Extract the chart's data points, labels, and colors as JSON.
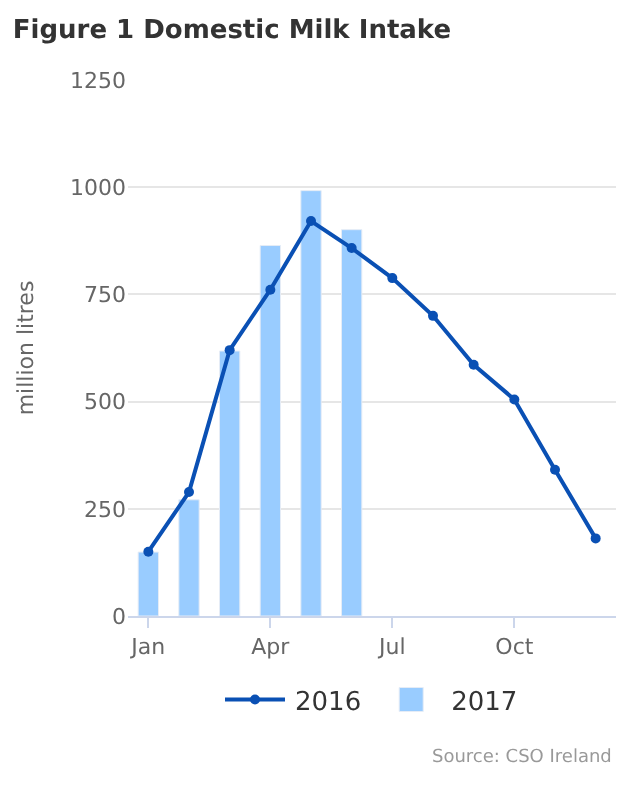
{
  "chart_data": {
    "type": "bar",
    "title": "Figure 1 Domestic Milk Intake",
    "ylabel": "million litres",
    "categories": [
      "Jan",
      null,
      null,
      "Apr",
      null,
      null,
      "Jul",
      null,
      null,
      "Oct",
      null,
      null
    ],
    "series": [
      {
        "name": "2016",
        "type": "line",
        "color": "#0a50b4",
        "marker": "circle",
        "values": [
          150,
          289,
          620,
          761,
          921,
          858,
          788,
          700,
          586,
          505,
          341,
          181
        ]
      },
      {
        "name": "2017",
        "color": "#99ccff",
        "values": [
          149,
          271,
          618,
          864,
          992,
          901,
          null,
          null,
          null,
          null,
          null,
          null
        ]
      }
    ],
    "ylim": [
      0,
      1250
    ],
    "yticks": [
      0,
      250,
      500,
      750,
      1000,
      1250
    ],
    "grid": "y",
    "legend": "bottom",
    "annotations": [
      "Source: CSO Ireland"
    ]
  }
}
